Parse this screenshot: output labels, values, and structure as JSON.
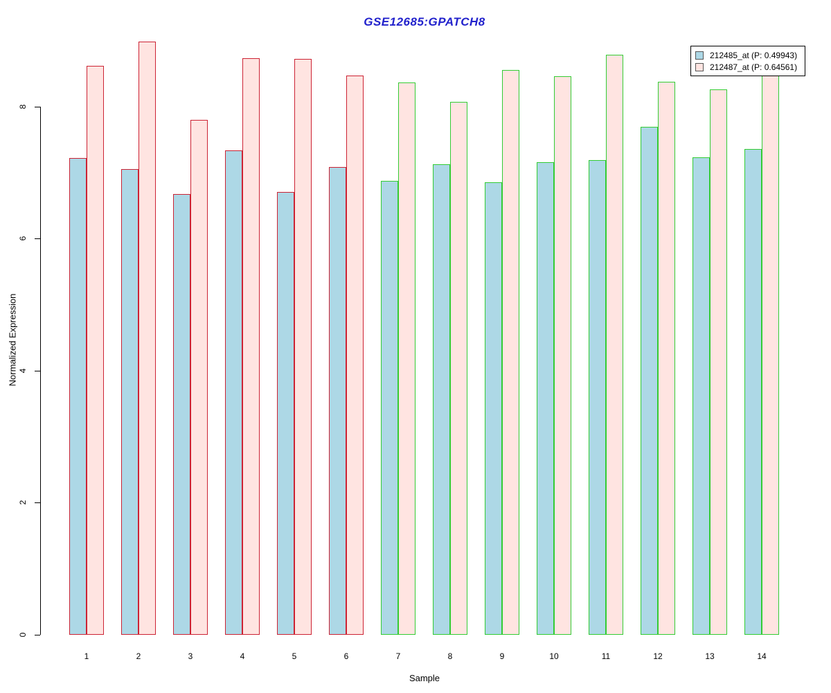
{
  "title": "GSE12685:GPATCH8",
  "title_color": "#2222CC",
  "chart_data": {
    "type": "bar",
    "title": "GSE12685:GPATCH8",
    "xlabel": "Sample",
    "ylabel": "Normalized Expression",
    "categories": [
      "1",
      "2",
      "3",
      "4",
      "5",
      "6",
      "7",
      "8",
      "9",
      "10",
      "11",
      "12",
      "13",
      "14"
    ],
    "series": [
      {
        "name": "212485_at (P: 0.49943)",
        "fill": "#ADD8E6",
        "values": [
          7.22,
          7.05,
          6.67,
          7.33,
          6.7,
          7.08,
          6.87,
          7.12,
          6.85,
          7.16,
          7.19,
          7.69,
          7.23,
          7.36
        ]
      },
      {
        "name": "212487_at (P: 0.64561)",
        "fill": "#FFE4E1",
        "values": [
          8.62,
          8.98,
          7.8,
          8.73,
          8.72,
          8.47,
          8.36,
          8.07,
          8.55,
          8.46,
          8.78,
          8.37,
          8.26,
          8.6
        ]
      }
    ],
    "bar_border_colors": {
      "samples_1_to_6": "#CC2233",
      "samples_7_to_14": "#33CC33"
    },
    "border_split_index": 6,
    "yticks": [
      0,
      2,
      4,
      6,
      8
    ],
    "ylim": [
      0,
      9.2
    ],
    "grid": false,
    "legend_position": "top-right",
    "note": "top of sample 14 second-series bar is hidden behind the legend box"
  },
  "legend": {
    "swatch_border_color": "#555555"
  }
}
